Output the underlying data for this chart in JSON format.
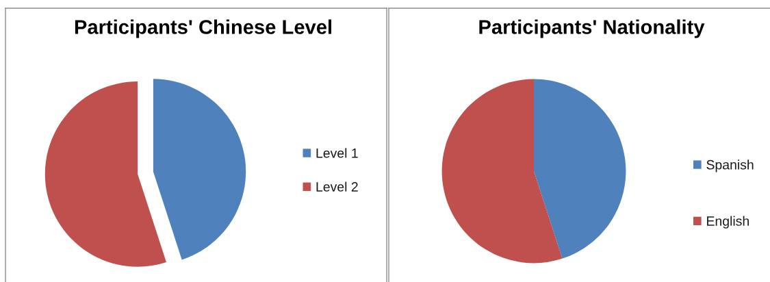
{
  "chart_data": [
    {
      "type": "pie",
      "title": "Participants' Chinese Level",
      "categories": [
        "Level 1",
        "Level 2"
      ],
      "values": [
        45,
        55
      ],
      "colors": [
        "#4f81bd",
        "#c0504d"
      ],
      "legend": "right"
    },
    {
      "type": "pie",
      "title": "Participants' Nationality",
      "categories": [
        "Spanish",
        "English"
      ],
      "values": [
        45,
        55
      ],
      "colors": [
        "#4f81bd",
        "#c0504d"
      ],
      "legend": "right"
    }
  ]
}
